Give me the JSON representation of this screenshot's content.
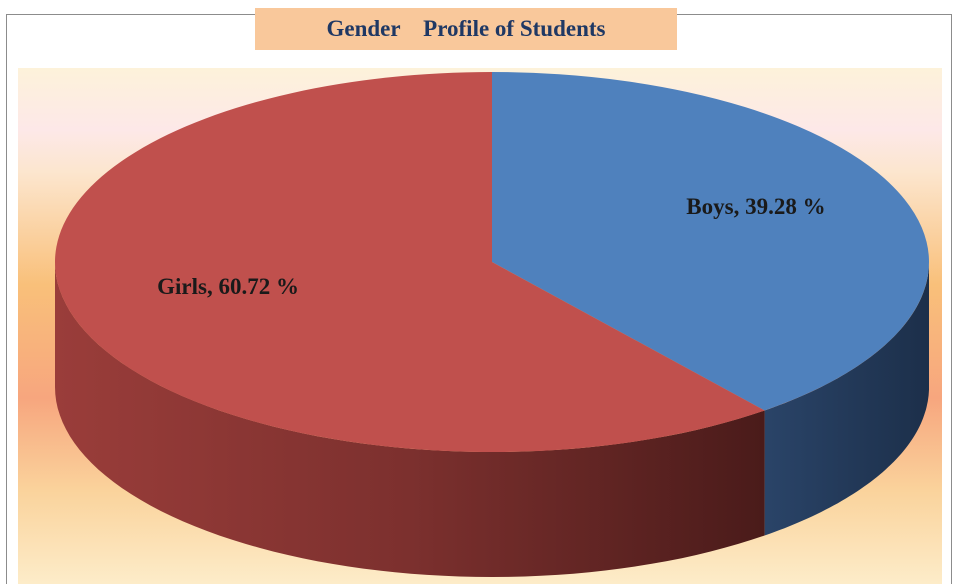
{
  "chart_data": {
    "type": "pie",
    "title": "Gender    Profile of Students",
    "categories": [
      "Boys",
      "Girls"
    ],
    "values": [
      39.28,
      60.72
    ],
    "value_labels": [
      "39.28 %",
      "60.72 %"
    ],
    "colors": [
      "#4f81bd",
      "#c0504d"
    ]
  }
}
